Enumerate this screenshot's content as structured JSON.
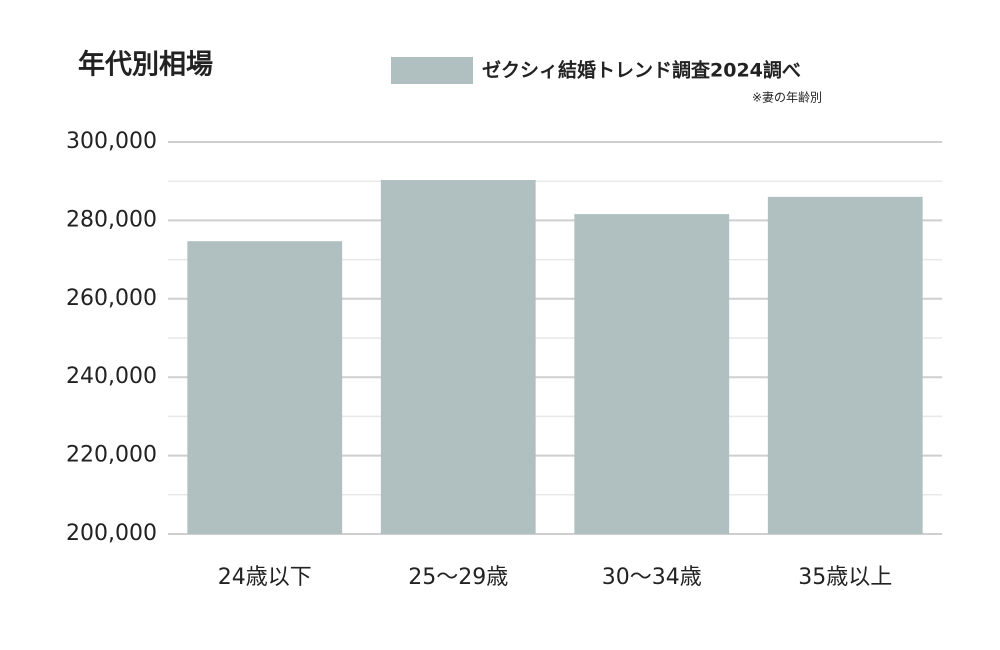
{
  "chart_data": {
    "type": "bar",
    "title": "年代別相場",
    "note": "※妻の年齢別",
    "series": [
      {
        "name": "ゼクシィ結婚トレンド調査2024調べ",
        "color": "#b0c0c0",
        "values": [
          274700,
          290300,
          281600,
          286000
        ]
      }
    ],
    "categories": [
      "24歳以下",
      "25〜29歳",
      "30〜34歳",
      "35歳以上"
    ],
    "ylim": [
      200000,
      300000
    ],
    "yticks": [
      {
        "value": 200000,
        "label": "200,000"
      },
      {
        "value": 220000,
        "label": "220,000"
      },
      {
        "value": 240000,
        "label": "240,000"
      },
      {
        "value": 260000,
        "label": "260,000"
      },
      {
        "value": 280000,
        "label": "280,000"
      },
      {
        "value": 300000,
        "label": "300,000"
      }
    ],
    "minor_yticks": [
      210000,
      230000,
      250000,
      270000,
      290000
    ],
    "grid": true
  }
}
